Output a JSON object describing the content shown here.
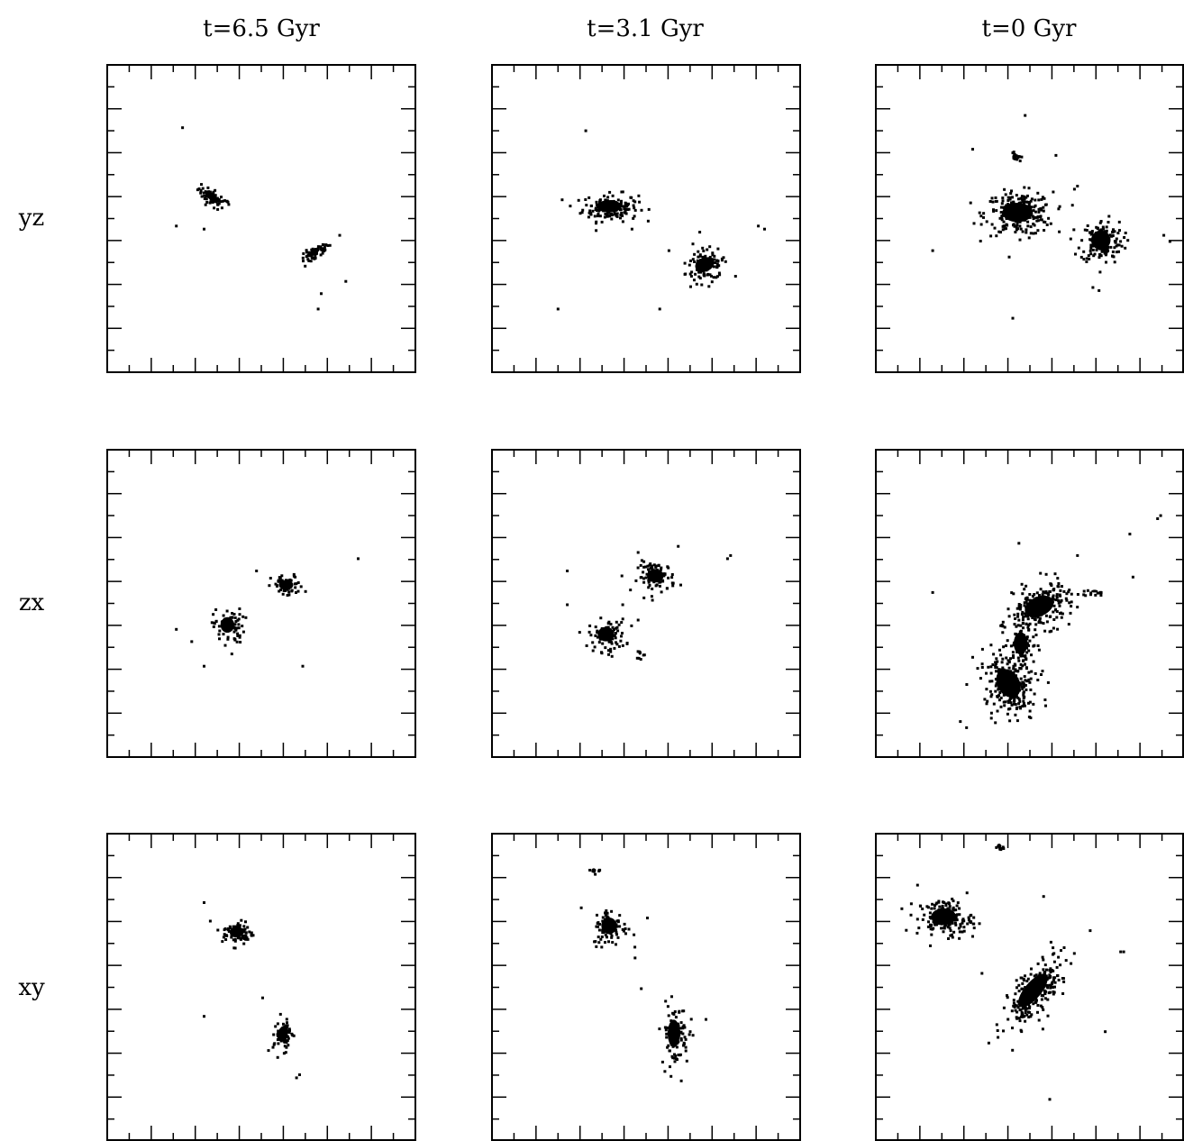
{
  "figure": {
    "column_titles": [
      "t=6.5 Gyr",
      "t=3.1 Gyr",
      "t=0 Gyr"
    ],
    "row_labels": [
      "yz",
      "zx",
      "xy"
    ]
  },
  "chart_data": {
    "type": "scatter",
    "grid": false,
    "legend": "none",
    "panel_range": [
      0,
      1
    ],
    "panels": [
      {
        "column": "t=6.5 Gyr",
        "row": "yz",
        "ticks": 7,
        "clumps": [
          {
            "x": 0.34,
            "y": 0.57,
            "n": 60,
            "sx": 0.028,
            "sy": 0.012,
            "angle": -35
          },
          {
            "x": 0.67,
            "y": 0.39,
            "n": 55,
            "sx": 0.026,
            "sy": 0.01,
            "angle": 35
          }
        ],
        "points": [
          [
            0.24,
            0.8
          ],
          [
            0.22,
            0.48
          ],
          [
            0.31,
            0.47
          ],
          [
            0.39,
            0.55
          ],
          [
            0.75,
            0.45
          ],
          [
            0.69,
            0.26
          ],
          [
            0.77,
            0.3
          ],
          [
            0.68,
            0.21
          ]
        ]
      },
      {
        "column": "t=3.1 Gyr",
        "row": "yz",
        "ticks": 7,
        "clumps": [
          {
            "x": 0.38,
            "y": 0.54,
            "n": 160,
            "sx": 0.045,
            "sy": 0.022,
            "angle": 0
          },
          {
            "x": 0.69,
            "y": 0.35,
            "n": 110,
            "sx": 0.035,
            "sy": 0.025,
            "angle": 20
          }
        ],
        "points": [
          [
            0.3,
            0.79
          ],
          [
            0.88,
            0.47
          ],
          [
            0.86,
            0.48
          ],
          [
            0.21,
            0.21
          ],
          [
            0.54,
            0.21
          ],
          [
            0.67,
            0.46
          ],
          [
            0.57,
            0.4
          ],
          [
            0.45,
            0.47
          ]
        ]
      },
      {
        "column": "t=0 Gyr",
        "row": "yz",
        "ticks": 7,
        "clumps": [
          {
            "x": 0.46,
            "y": 0.52,
            "n": 230,
            "sx": 0.055,
            "sy": 0.035,
            "angle": 0
          },
          {
            "x": 0.73,
            "y": 0.43,
            "n": 150,
            "sx": 0.035,
            "sy": 0.035,
            "angle": 0
          },
          {
            "x": 0.45,
            "y": 0.7,
            "n": 12,
            "sx": 0.008,
            "sy": 0.012,
            "angle": 0
          }
        ],
        "points": [
          [
            0.48,
            0.84
          ],
          [
            0.31,
            0.73
          ],
          [
            0.58,
            0.71
          ],
          [
            0.64,
            0.6
          ],
          [
            0.65,
            0.61
          ],
          [
            0.18,
            0.4
          ],
          [
            0.44,
            0.18
          ],
          [
            0.95,
            0.43
          ],
          [
            0.93,
            0.45
          ],
          [
            0.7,
            0.28
          ],
          [
            0.72,
            0.27
          ]
        ]
      },
      {
        "column": "t=6.5 Gyr",
        "row": "zx",
        "ticks": 7,
        "clumps": [
          {
            "x": 0.39,
            "y": 0.43,
            "n": 70,
            "sx": 0.025,
            "sy": 0.028,
            "angle": 0
          },
          {
            "x": 0.58,
            "y": 0.56,
            "n": 65,
            "sx": 0.026,
            "sy": 0.018,
            "angle": 0
          }
        ],
        "points": [
          [
            0.48,
            0.61
          ],
          [
            0.81,
            0.65
          ],
          [
            0.22,
            0.42
          ],
          [
            0.4,
            0.34
          ],
          [
            0.31,
            0.3
          ],
          [
            0.63,
            0.3
          ],
          [
            0.27,
            0.38
          ]
        ]
      },
      {
        "column": "t=3.1 Gyr",
        "row": "zx",
        "ticks": 7,
        "clumps": [
          {
            "x": 0.37,
            "y": 0.4,
            "n": 90,
            "sx": 0.03,
            "sy": 0.026,
            "angle": 0
          },
          {
            "x": 0.53,
            "y": 0.59,
            "n": 90,
            "sx": 0.03,
            "sy": 0.024,
            "angle": 0
          },
          {
            "x": 0.48,
            "y": 0.34,
            "n": 6,
            "sx": 0.006,
            "sy": 0.008,
            "angle": 0
          }
        ],
        "points": [
          [
            0.76,
            0.65
          ],
          [
            0.77,
            0.66
          ],
          [
            0.24,
            0.61
          ],
          [
            0.24,
            0.5
          ],
          [
            0.47,
            0.45
          ],
          [
            0.42,
            0.5
          ],
          [
            0.6,
            0.69
          ],
          [
            0.47,
            0.67
          ]
        ]
      },
      {
        "column": "t=0 Gyr",
        "row": "zx",
        "ticks": 7,
        "clumps": [
          {
            "x": 0.53,
            "y": 0.49,
            "n": 230,
            "sx": 0.055,
            "sy": 0.035,
            "angle": 25
          },
          {
            "x": 0.43,
            "y": 0.24,
            "n": 240,
            "sx": 0.04,
            "sy": 0.055,
            "angle": 30
          },
          {
            "x": 0.47,
            "y": 0.37,
            "n": 60,
            "sx": 0.025,
            "sy": 0.04,
            "angle": 0
          },
          {
            "x": 0.71,
            "y": 0.54,
            "n": 10,
            "sx": 0.012,
            "sy": 0.005,
            "angle": 0
          }
        ],
        "points": [
          [
            0.18,
            0.54
          ],
          [
            0.91,
            0.78
          ],
          [
            0.92,
            0.79
          ],
          [
            0.82,
            0.73
          ],
          [
            0.83,
            0.59
          ],
          [
            0.65,
            0.66
          ],
          [
            0.27,
            0.12
          ],
          [
            0.29,
            0.1
          ],
          [
            0.46,
            0.7
          ]
        ]
      },
      {
        "column": "t=6.5 Gyr",
        "row": "xy",
        "ticks": 7,
        "clumps": [
          {
            "x": 0.42,
            "y": 0.68,
            "n": 70,
            "sx": 0.025,
            "sy": 0.02,
            "angle": 0
          },
          {
            "x": 0.57,
            "y": 0.35,
            "n": 60,
            "sx": 0.018,
            "sy": 0.03,
            "angle": -20
          }
        ],
        "points": [
          [
            0.31,
            0.78
          ],
          [
            0.33,
            0.72
          ],
          [
            0.62,
            0.22
          ],
          [
            0.61,
            0.21
          ],
          [
            0.5,
            0.47
          ],
          [
            0.31,
            0.41
          ]
        ]
      },
      {
        "column": "t=3.1 Gyr",
        "row": "xy",
        "ticks": 7,
        "clumps": [
          {
            "x": 0.38,
            "y": 0.7,
            "n": 90,
            "sx": 0.028,
            "sy": 0.03,
            "angle": 0
          },
          {
            "x": 0.59,
            "y": 0.35,
            "n": 100,
            "sx": 0.022,
            "sy": 0.05,
            "angle": 0
          },
          {
            "x": 0.33,
            "y": 0.88,
            "n": 8,
            "sx": 0.008,
            "sy": 0.008,
            "angle": 0
          }
        ],
        "points": [
          [
            0.48,
            0.5
          ],
          [
            0.5,
            0.73
          ],
          [
            0.46,
            0.6
          ],
          [
            0.61,
            0.2
          ],
          [
            0.69,
            0.4
          ]
        ]
      },
      {
        "column": "t=0 Gyr",
        "row": "xy",
        "ticks": 7,
        "clumps": [
          {
            "x": 0.22,
            "y": 0.73,
            "n": 150,
            "sx": 0.045,
            "sy": 0.03,
            "angle": 0
          },
          {
            "x": 0.51,
            "y": 0.49,
            "n": 220,
            "sx": 0.03,
            "sy": 0.075,
            "angle": -40
          },
          {
            "x": 0.4,
            "y": 0.96,
            "n": 8,
            "sx": 0.008,
            "sy": 0.008,
            "angle": 0
          }
        ],
        "points": [
          [
            0.79,
            0.62
          ],
          [
            0.8,
            0.62
          ],
          [
            0.74,
            0.36
          ],
          [
            0.56,
            0.14
          ],
          [
            0.34,
            0.55
          ],
          [
            0.31,
            0.67
          ],
          [
            0.08,
            0.76
          ],
          [
            0.54,
            0.8
          ]
        ]
      }
    ]
  }
}
